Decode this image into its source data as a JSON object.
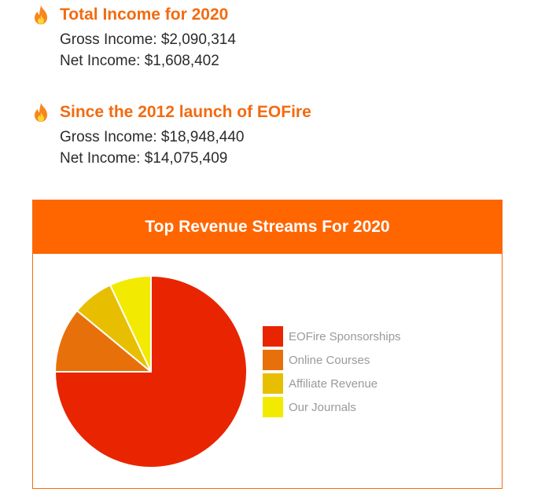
{
  "sections": [
    {
      "title": "Total Income for 2020",
      "gross": "Gross Income: $2,090,314",
      "net": "Net Income: $1,608,402"
    },
    {
      "title": "Since the 2012 launch of EOFire",
      "gross": "Gross Income: $18,948,440",
      "net": "Net Income: $14,075,409"
    }
  ],
  "icons": {
    "flame": "flame-icon"
  },
  "colors": {
    "accent": "#ff6600",
    "title_text": "#f26b10"
  },
  "chart_data": {
    "type": "pie",
    "title": "Top Revenue Streams For 2020",
    "legend_position": "right",
    "slices": [
      {
        "label": "EOFire Sponsorships",
        "value": 75,
        "color": "#e82500"
      },
      {
        "label": "Online Courses",
        "value": 11,
        "color": "#e8700a"
      },
      {
        "label": "Affiliate Revenue",
        "value": 7,
        "color": "#e8bf00"
      },
      {
        "label": "Our Journals",
        "value": 7,
        "color": "#f2ea00"
      }
    ]
  }
}
